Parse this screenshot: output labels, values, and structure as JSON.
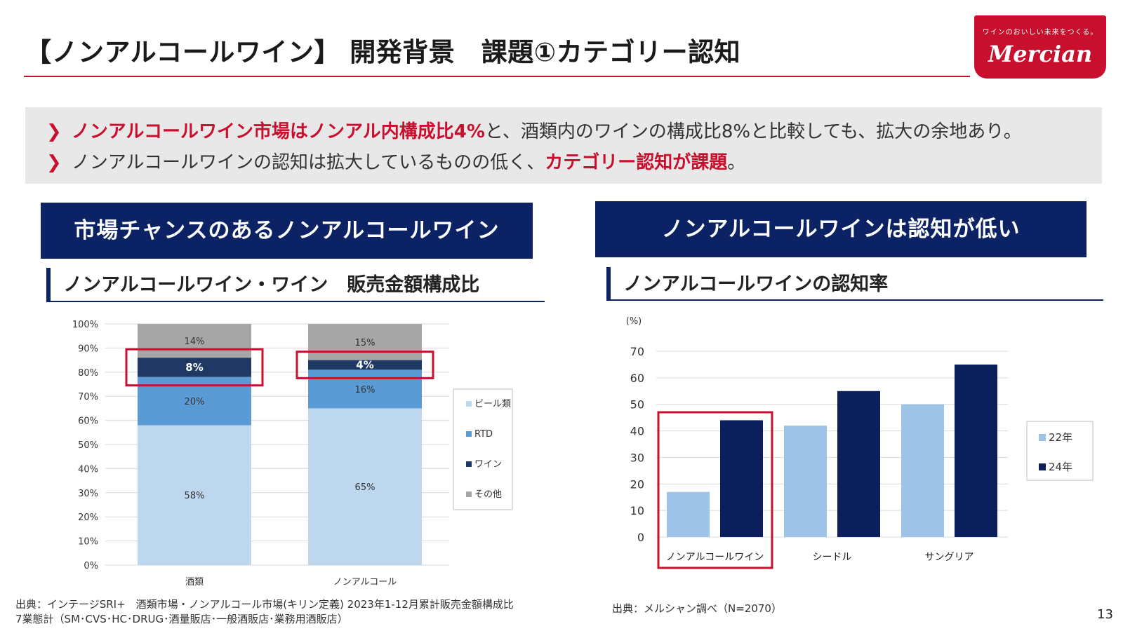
{
  "title": "【ノンアルコールワイン】 開発背景　課題①カテゴリー認知",
  "logo": {
    "tagline": "ワインのおいしい未来をつくる。",
    "wordmark": "Mercian"
  },
  "bullets": [
    {
      "red": "ノンアルコールワイン市場はノンアル内構成比4%",
      "rest": "と、酒類内のワインの構成比8%と比較しても、拡大の余地あり。"
    },
    {
      "plain": "ノンアルコールワインの認知は拡大しているものの低く、",
      "red": "カテゴリー認知が課題",
      "end": "。"
    }
  ],
  "left_panel": {
    "banner": "市場チャンスのあるノンアルコールワイン",
    "subtitle": "ノンアルコールワイン・ワイン　販売金額構成比",
    "source_line1": "出典：インテージSRI+　酒類市場・ノンアルコール市場(キリン定義) 2023年1-12月累計販売金額構成比",
    "source_line2": "7業態計（SM･CVS･HC･DRUG･酒量販店･一般酒販店･業務用酒販店）"
  },
  "right_panel": {
    "banner": "ノンアルコールワインは認知が低い",
    "subtitle": "ノンアルコールワインの認知率",
    "source": "出典：メルシャン調べ（N=2070）"
  },
  "page_number": "13",
  "chart_data": [
    {
      "type": "bar",
      "stacked": true,
      "percent": true,
      "categories": [
        "酒類",
        "ノンアルコール"
      ],
      "series": [
        {
          "name": "ビール類",
          "values": [
            58,
            65
          ],
          "color": "#bdd7ee"
        },
        {
          "name": "RTD",
          "values": [
            20,
            16
          ],
          "color": "#5b9bd5"
        },
        {
          "name": "ワイン",
          "values": [
            8,
            4
          ],
          "color": "#1f3864"
        },
        {
          "name": "その他",
          "values": [
            14,
            15
          ],
          "color": "#a6a6a6"
        }
      ],
      "data_labels": [
        [
          "58%",
          "20%",
          "8%",
          "14%"
        ],
        [
          "65%",
          "16%",
          "4%",
          "15%"
        ]
      ],
      "yticks": [
        "0%",
        "10%",
        "20%",
        "30%",
        "40%",
        "50%",
        "60%",
        "70%",
        "80%",
        "90%",
        "100%"
      ],
      "ylim": [
        0,
        100
      ],
      "grid": true,
      "legend": "right",
      "highlight": "ワイン"
    },
    {
      "type": "bar",
      "categories": [
        "ノンアルコールワイン",
        "シードル",
        "サングリア"
      ],
      "series": [
        {
          "name": "22年",
          "values": [
            17,
            42,
            50
          ],
          "color": "#9dc3e6"
        },
        {
          "name": "24年",
          "values": [
            44,
            55,
            65
          ],
          "color": "#0b1f5c"
        }
      ],
      "ylabel": "(%)",
      "yticks": [
        "0",
        "10",
        "20",
        "30",
        "40",
        "50",
        "60",
        "70"
      ],
      "ylim": [
        0,
        70
      ],
      "grid": true,
      "legend": "right",
      "highlight": "ノンアルコールワイン"
    }
  ]
}
